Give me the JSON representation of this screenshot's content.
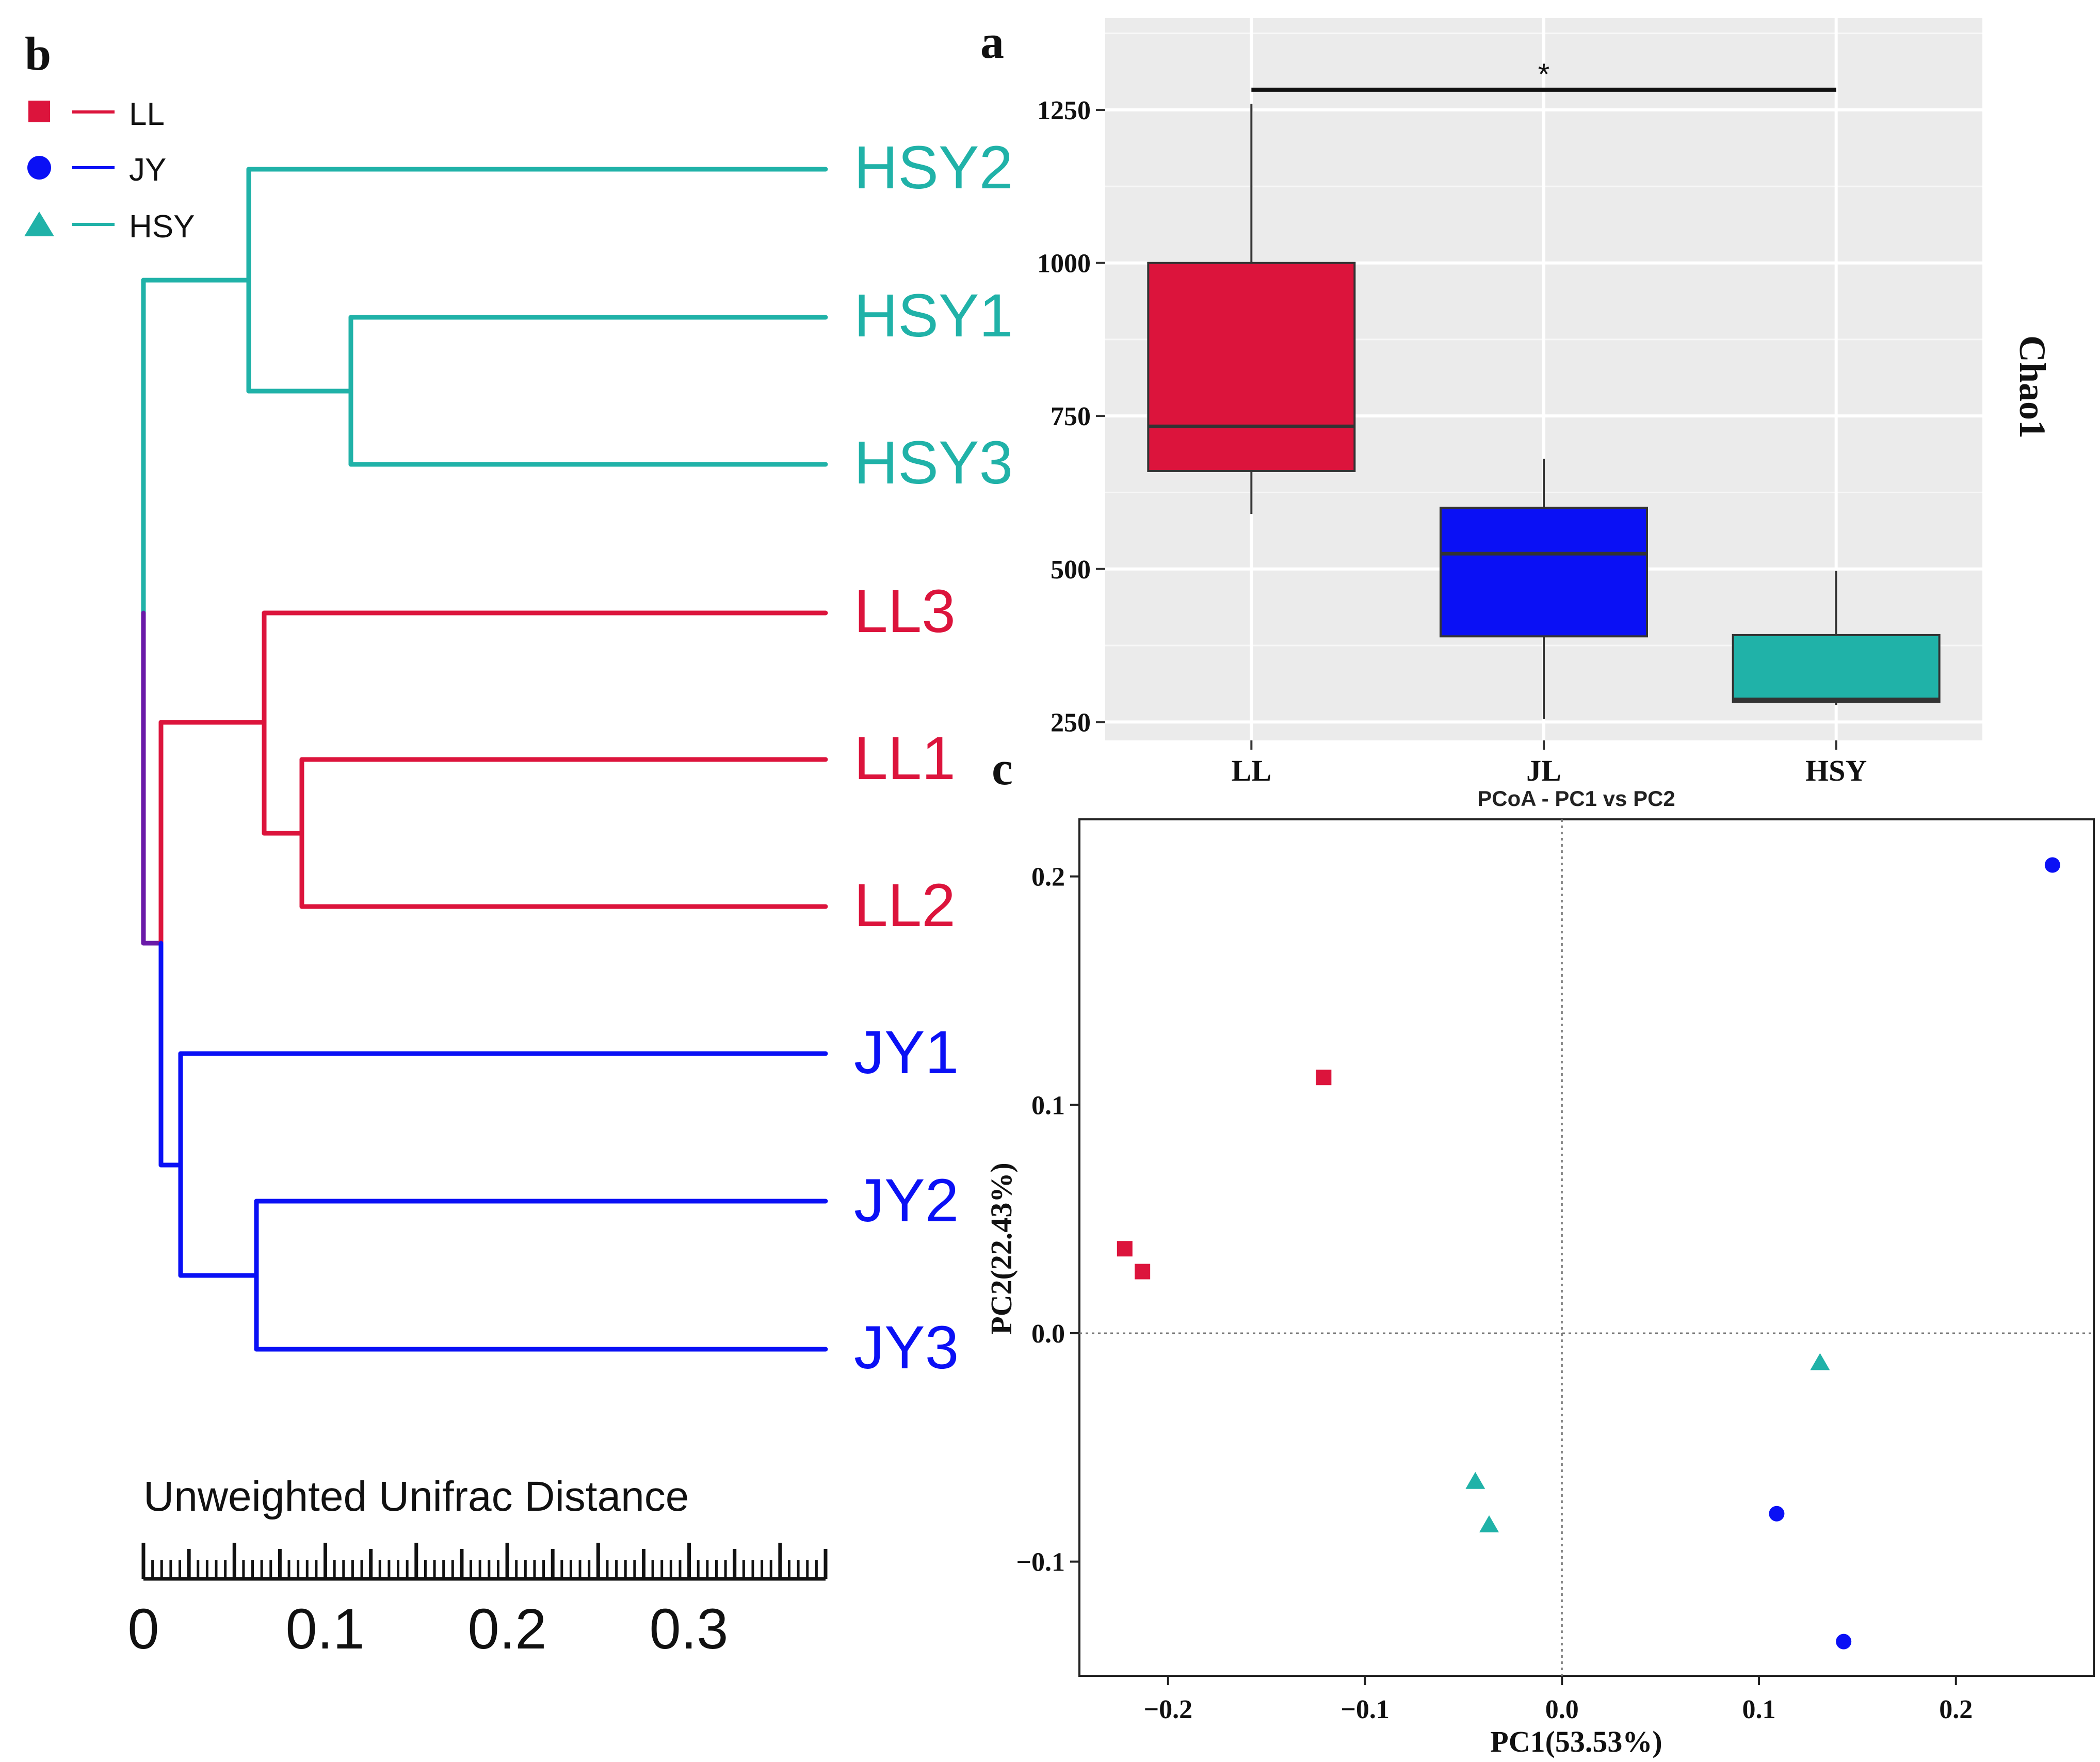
{
  "panels": {
    "a_label": "a",
    "b_label": "b",
    "c_label": "c"
  },
  "colors": {
    "LL": "#dc143c",
    "JY": "#0a10f5",
    "HSY": "#20b2a8",
    "panel_bg": "#ebebeb",
    "purple_join": "#6a1aa8"
  },
  "legend_b": [
    {
      "label": "LL",
      "shape": "square",
      "color": "#dc143c"
    },
    {
      "label": "JY",
      "shape": "circle",
      "color": "#0a10f5"
    },
    {
      "label": "HSY",
      "shape": "triangle",
      "color": "#20b2a8"
    }
  ],
  "dendrogram": {
    "scale_title": "Unweighted Unifrac Distance",
    "scale_ticks": [
      "0",
      "0.1",
      "0.2",
      "0.3"
    ],
    "scale_max": 0.375,
    "leaves": [
      {
        "label": "HSY2",
        "group": "HSY"
      },
      {
        "label": "HSY1",
        "group": "HSY"
      },
      {
        "label": "HSY3",
        "group": "HSY"
      },
      {
        "label": "LL3",
        "group": "LL"
      },
      {
        "label": "LL1",
        "group": "LL"
      },
      {
        "label": "LL2",
        "group": "LL"
      },
      {
        "label": "JY1",
        "group": "JY"
      },
      {
        "label": "JY2",
        "group": "JY"
      },
      {
        "label": "JY3",
        "group": "JY"
      }
    ]
  },
  "chart_data": [
    {
      "panel": "a",
      "type": "box",
      "title": "",
      "ylabel": "Chao1",
      "categories": [
        "LL",
        "JL",
        "HSY"
      ],
      "ylim": [
        220,
        1400
      ],
      "yticks": [
        250,
        500,
        750,
        1000,
        1250
      ],
      "boxes": [
        {
          "category": "LL",
          "min": 590,
          "q1": 660,
          "median": 733,
          "q3": 1000,
          "max": 1260,
          "color": "#dc143c"
        },
        {
          "category": "JL",
          "min": 255,
          "q1": 390,
          "median": 525,
          "q3": 600,
          "max": 680,
          "color": "#0a10f5"
        },
        {
          "category": "HSY",
          "min": 278,
          "q1": 283,
          "median": 287,
          "q3": 392,
          "max": 497,
          "color": "#20b2a8"
        }
      ],
      "significance": {
        "from": "LL",
        "to": "HSY",
        "label": "*",
        "y": 1283
      }
    },
    {
      "panel": "c",
      "type": "scatter",
      "title": "PCoA - PC1 vs PC2",
      "xlabel": "PC1(53.53%)",
      "ylabel": "PC2(22.43%)",
      "xlim": [
        -0.245,
        0.27
      ],
      "ylim": [
        -0.15,
        0.225
      ],
      "xticks": [
        -0.2,
        -0.1,
        0.0,
        0.1,
        0.2
      ],
      "xtick_labels": [
        "−0.2",
        "−0.1",
        "0.0",
        "0.1",
        "0.2"
      ],
      "yticks": [
        -0.1,
        0.0,
        0.1,
        0.2
      ],
      "ytick_labels": [
        "−0.1",
        "0.0",
        "0.1",
        "0.2"
      ],
      "series": [
        {
          "group": "LL",
          "shape": "square",
          "color": "#dc143c",
          "points": [
            {
              "x": -0.121,
              "y": 0.112
            },
            {
              "x": -0.222,
              "y": 0.037
            },
            {
              "x": -0.213,
              "y": 0.027
            }
          ]
        },
        {
          "group": "JY",
          "shape": "circle",
          "color": "#0a10f5",
          "points": [
            {
              "x": 0.249,
              "y": 0.205
            },
            {
              "x": 0.109,
              "y": -0.079
            },
            {
              "x": 0.143,
              "y": -0.135
            }
          ]
        },
        {
          "group": "HSY",
          "shape": "triangle",
          "color": "#20b2a8",
          "points": [
            {
              "x": 0.131,
              "y": -0.013
            },
            {
              "x": -0.044,
              "y": -0.065
            },
            {
              "x": -0.037,
              "y": -0.084
            }
          ]
        }
      ]
    }
  ]
}
